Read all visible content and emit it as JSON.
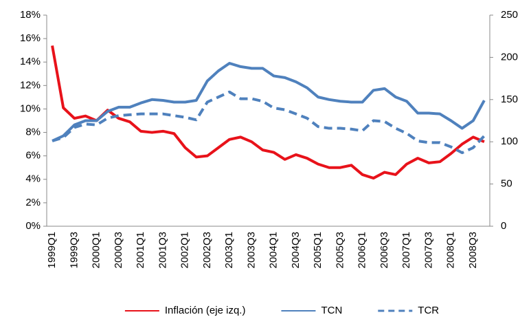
{
  "chart_data": {
    "type": "line",
    "categories": [
      "1999Q1",
      null,
      "1999Q3",
      null,
      "2000Q1",
      null,
      "2000Q3",
      null,
      "2001Q1",
      null,
      "2001Q3",
      null,
      "2002Q1",
      null,
      "2002Q3",
      null,
      "2003Q1",
      null,
      "2003Q3",
      null,
      "2004Q1",
      null,
      "2004Q3",
      null,
      "2005Q1",
      null,
      "2005Q3",
      null,
      "2006Q1",
      null,
      "2006Q3",
      null,
      "2007Q1",
      null,
      "2007Q3",
      null,
      "2008Q1",
      null,
      "2008Q3",
      null
    ],
    "series": [
      {
        "name": "Inflación (eje izq.)",
        "color": "#e8121a",
        "axis": "y",
        "values": [
          15.4,
          10.1,
          9.2,
          9.4,
          9.0,
          9.9,
          9.2,
          8.9,
          8.1,
          8.0,
          8.1,
          7.9,
          6.7,
          5.9,
          6.0,
          6.7,
          7.4,
          7.6,
          7.2,
          6.5,
          6.3,
          5.7,
          6.1,
          5.8,
          5.3,
          5.0,
          5.0,
          5.2,
          4.4,
          4.1,
          4.6,
          4.4,
          5.3,
          5.8,
          5.4,
          5.5,
          6.2,
          7.0,
          7.6,
          7.2
        ]
      },
      {
        "name": "TCN",
        "color": "#4f81bd",
        "axis": "y2",
        "values": [
          101,
          107,
          120,
          125,
          125,
          136,
          141,
          141,
          146,
          150,
          149,
          147,
          147,
          149,
          172,
          184,
          193,
          189,
          187,
          187,
          178,
          176,
          171,
          164,
          153,
          150,
          148,
          147,
          147,
          161,
          163,
          153,
          148,
          134,
          134,
          133,
          125,
          116,
          125,
          149
        ]
      },
      {
        "name": "TCR",
        "color": "#4f81bd",
        "axis": "y2",
        "dashed": true,
        "values": [
          101,
          105,
          117,
          121,
          120,
          128,
          131,
          132,
          133,
          133,
          133,
          131,
          129,
          126,
          147,
          153,
          159,
          151,
          151,
          148,
          140,
          138,
          133,
          128,
          118,
          116,
          116,
          115,
          113,
          125,
          124,
          116,
          110,
          101,
          99,
          99,
          94,
          87,
          93,
          107
        ]
      }
    ],
    "ylim": [
      0,
      18
    ],
    "yticks": [
      {
        "value": 0,
        "label": "0%"
      },
      {
        "value": 2,
        "label": "2%"
      },
      {
        "value": 4,
        "label": "4%"
      },
      {
        "value": 6,
        "label": "6%"
      },
      {
        "value": 8,
        "label": "8%"
      },
      {
        "value": 10,
        "label": "10%"
      },
      {
        "value": 12,
        "label": "12%"
      },
      {
        "value": 14,
        "label": "14%"
      },
      {
        "value": 16,
        "label": "16%"
      },
      {
        "value": 18,
        "label": "18%"
      }
    ],
    "y2lim": [
      0,
      250
    ],
    "y2ticks": [
      0,
      50,
      100,
      150,
      200,
      250
    ],
    "legend": "bottom"
  }
}
